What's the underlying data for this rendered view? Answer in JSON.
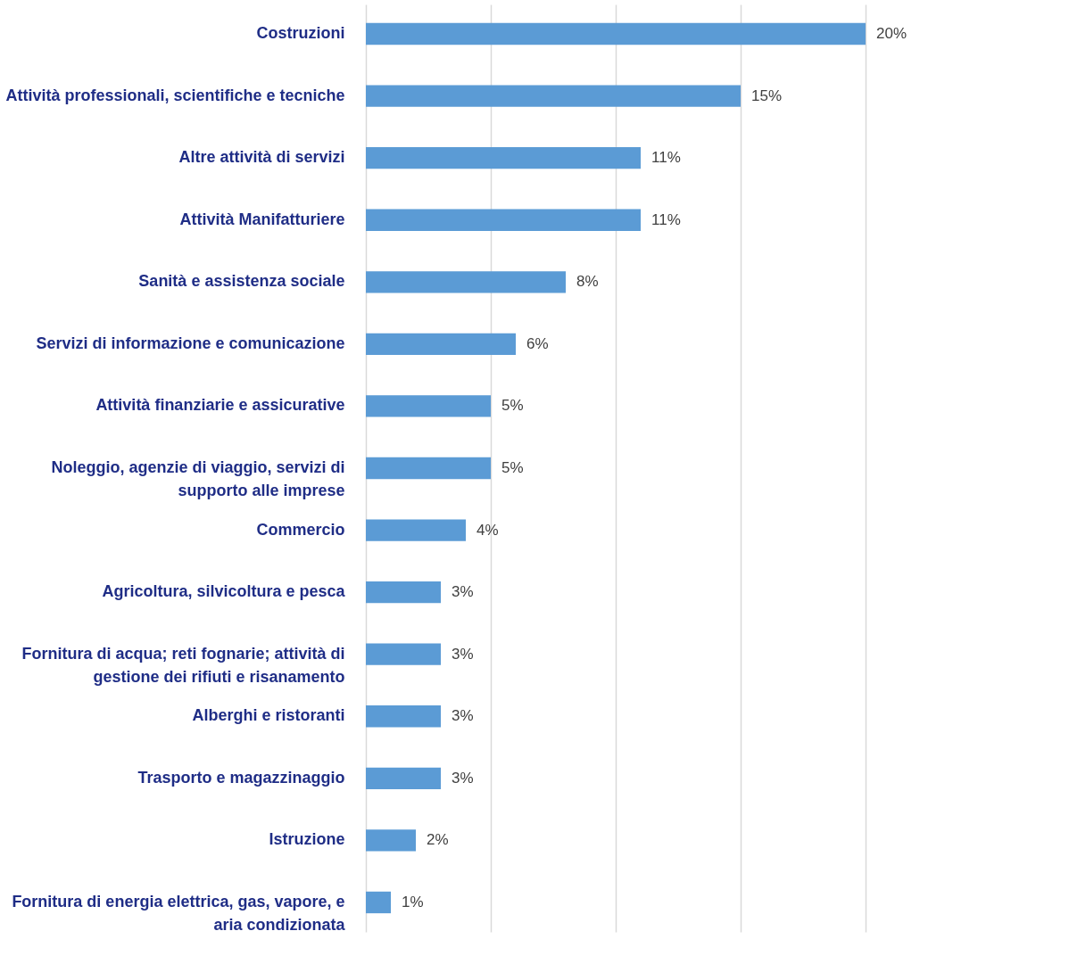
{
  "chart_data": {
    "type": "bar",
    "orientation": "horizontal",
    "categories": [
      "Costruzioni",
      "Attività professionali, scientifiche e tecniche",
      "Altre attività di servizi",
      "Attività Manifatturiere",
      "Sanità e assistenza sociale",
      "Servizi di informazione e comunicazione",
      "Attività finanziarie e assicurative",
      "Noleggio, agenzie di viaggio, servizi di\nsupporto alle imprese",
      "Commercio",
      "Agricoltura, silvicoltura e pesca",
      "Fornitura di acqua; reti fognarie; attività di\ngestione dei rifiuti e risanamento",
      "Alberghi e ristoranti",
      "Trasporto e magazzinaggio",
      "Istruzione",
      "Fornitura di energia elettrica, gas, vapore, e\naria condizionata"
    ],
    "values": [
      20,
      15,
      11,
      11,
      8,
      6,
      5,
      5,
      4,
      3,
      3,
      3,
      3,
      2,
      1
    ],
    "value_labels": [
      "20%",
      "15%",
      "11%",
      "11%",
      "8%",
      "6%",
      "5%",
      "5%",
      "4%",
      "3%",
      "3%",
      "3%",
      "3%",
      "2%",
      "1%"
    ],
    "color": "#5b9bd5",
    "xticks": [
      {
        "value": 0,
        "label": null
      },
      {
        "value": 5,
        "label": null
      },
      {
        "value": 10,
        "label": null
      },
      {
        "value": 15,
        "label": null
      },
      {
        "value": 20,
        "label": null
      }
    ],
    "grid": "x",
    "tick_labels": "y"
  }
}
